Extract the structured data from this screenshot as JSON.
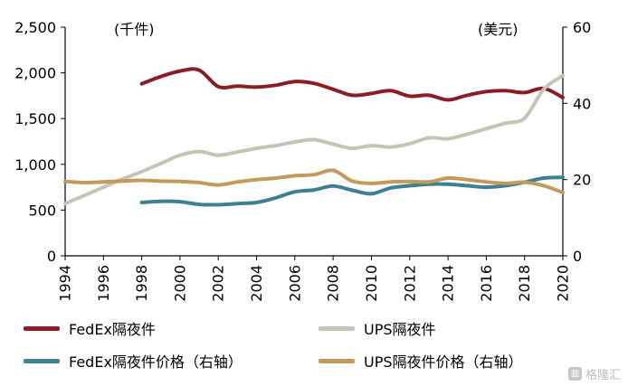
{
  "chart_data": {
    "type": "line",
    "title": "",
    "grid": false,
    "legend_position": "bottom",
    "left_axis": {
      "label": "(千件)",
      "min": 0,
      "max": 2500,
      "tick_values": [
        0,
        500,
        1000,
        1500,
        2000,
        2500
      ],
      "tick_labels": [
        "0",
        "500",
        "1,000",
        "1,500",
        "2,000",
        "2,500"
      ]
    },
    "right_axis": {
      "label": "(美元)",
      "min": 0,
      "max": 60,
      "tick_values": [
        0,
        20,
        40,
        60
      ],
      "tick_labels": [
        "0",
        "20",
        "40",
        "60"
      ]
    },
    "x": [
      1994,
      1995,
      1996,
      1997,
      1998,
      1999,
      2000,
      2001,
      2002,
      2003,
      2004,
      2005,
      2006,
      2007,
      2008,
      2009,
      2010,
      2011,
      2012,
      2013,
      2014,
      2015,
      2016,
      2017,
      2018,
      2019,
      2020
    ],
    "x_ticks": [
      1994,
      1996,
      1998,
      2000,
      2002,
      2004,
      2006,
      2008,
      2010,
      2012,
      2014,
      2016,
      2018,
      2020
    ],
    "x_tick_labels": [
      "1994",
      "1996",
      "1998",
      "2000",
      "2002",
      "2004",
      "2006",
      "2008",
      "2010",
      "2012",
      "2014",
      "2016",
      "2018",
      "2020"
    ],
    "series": [
      {
        "name": "FedEx隔夜件",
        "axis": "left",
        "color": "#8a1e24",
        "values": [
          null,
          null,
          null,
          null,
          1880,
          1960,
          2020,
          2030,
          1850,
          1855,
          1845,
          1865,
          1905,
          1885,
          1820,
          1755,
          1775,
          1805,
          1745,
          1755,
          1705,
          1755,
          1795,
          1805,
          1785,
          1830,
          1730
        ]
      },
      {
        "name": "UPS隔夜件",
        "axis": "left",
        "color": "#c7c3b6",
        "values": [
          570,
          660,
          750,
          840,
          920,
          1010,
          1100,
          1140,
          1100,
          1135,
          1175,
          1205,
          1245,
          1270,
          1220,
          1175,
          1205,
          1190,
          1225,
          1290,
          1280,
          1330,
          1390,
          1450,
          1505,
          1820,
          1970
        ]
      },
      {
        "name": "FedEx隔夜件价格（右轴）",
        "axis": "right",
        "color": "#3d7f93",
        "values": [
          null,
          null,
          null,
          null,
          14.0,
          14.3,
          14.2,
          13.5,
          13.4,
          13.7,
          14.0,
          15.2,
          16.8,
          17.3,
          18.3,
          17.2,
          16.3,
          17.8,
          18.4,
          18.8,
          18.8,
          18.4,
          18.0,
          18.4,
          19.3,
          20.4,
          20.6
        ]
      },
      {
        "name": "UPS隔夜件价格（右轴）",
        "axis": "right",
        "color": "#c49a5b",
        "values": [
          19.5,
          19.2,
          19.4,
          19.6,
          19.8,
          19.6,
          19.5,
          19.2,
          18.6,
          19.4,
          20.0,
          20.4,
          21.0,
          21.3,
          22.4,
          19.6,
          19.0,
          19.4,
          19.5,
          19.4,
          20.4,
          20.0,
          19.4,
          19.0,
          19.3,
          18.4,
          16.6
        ]
      }
    ]
  },
  "watermark": "格隆汇"
}
